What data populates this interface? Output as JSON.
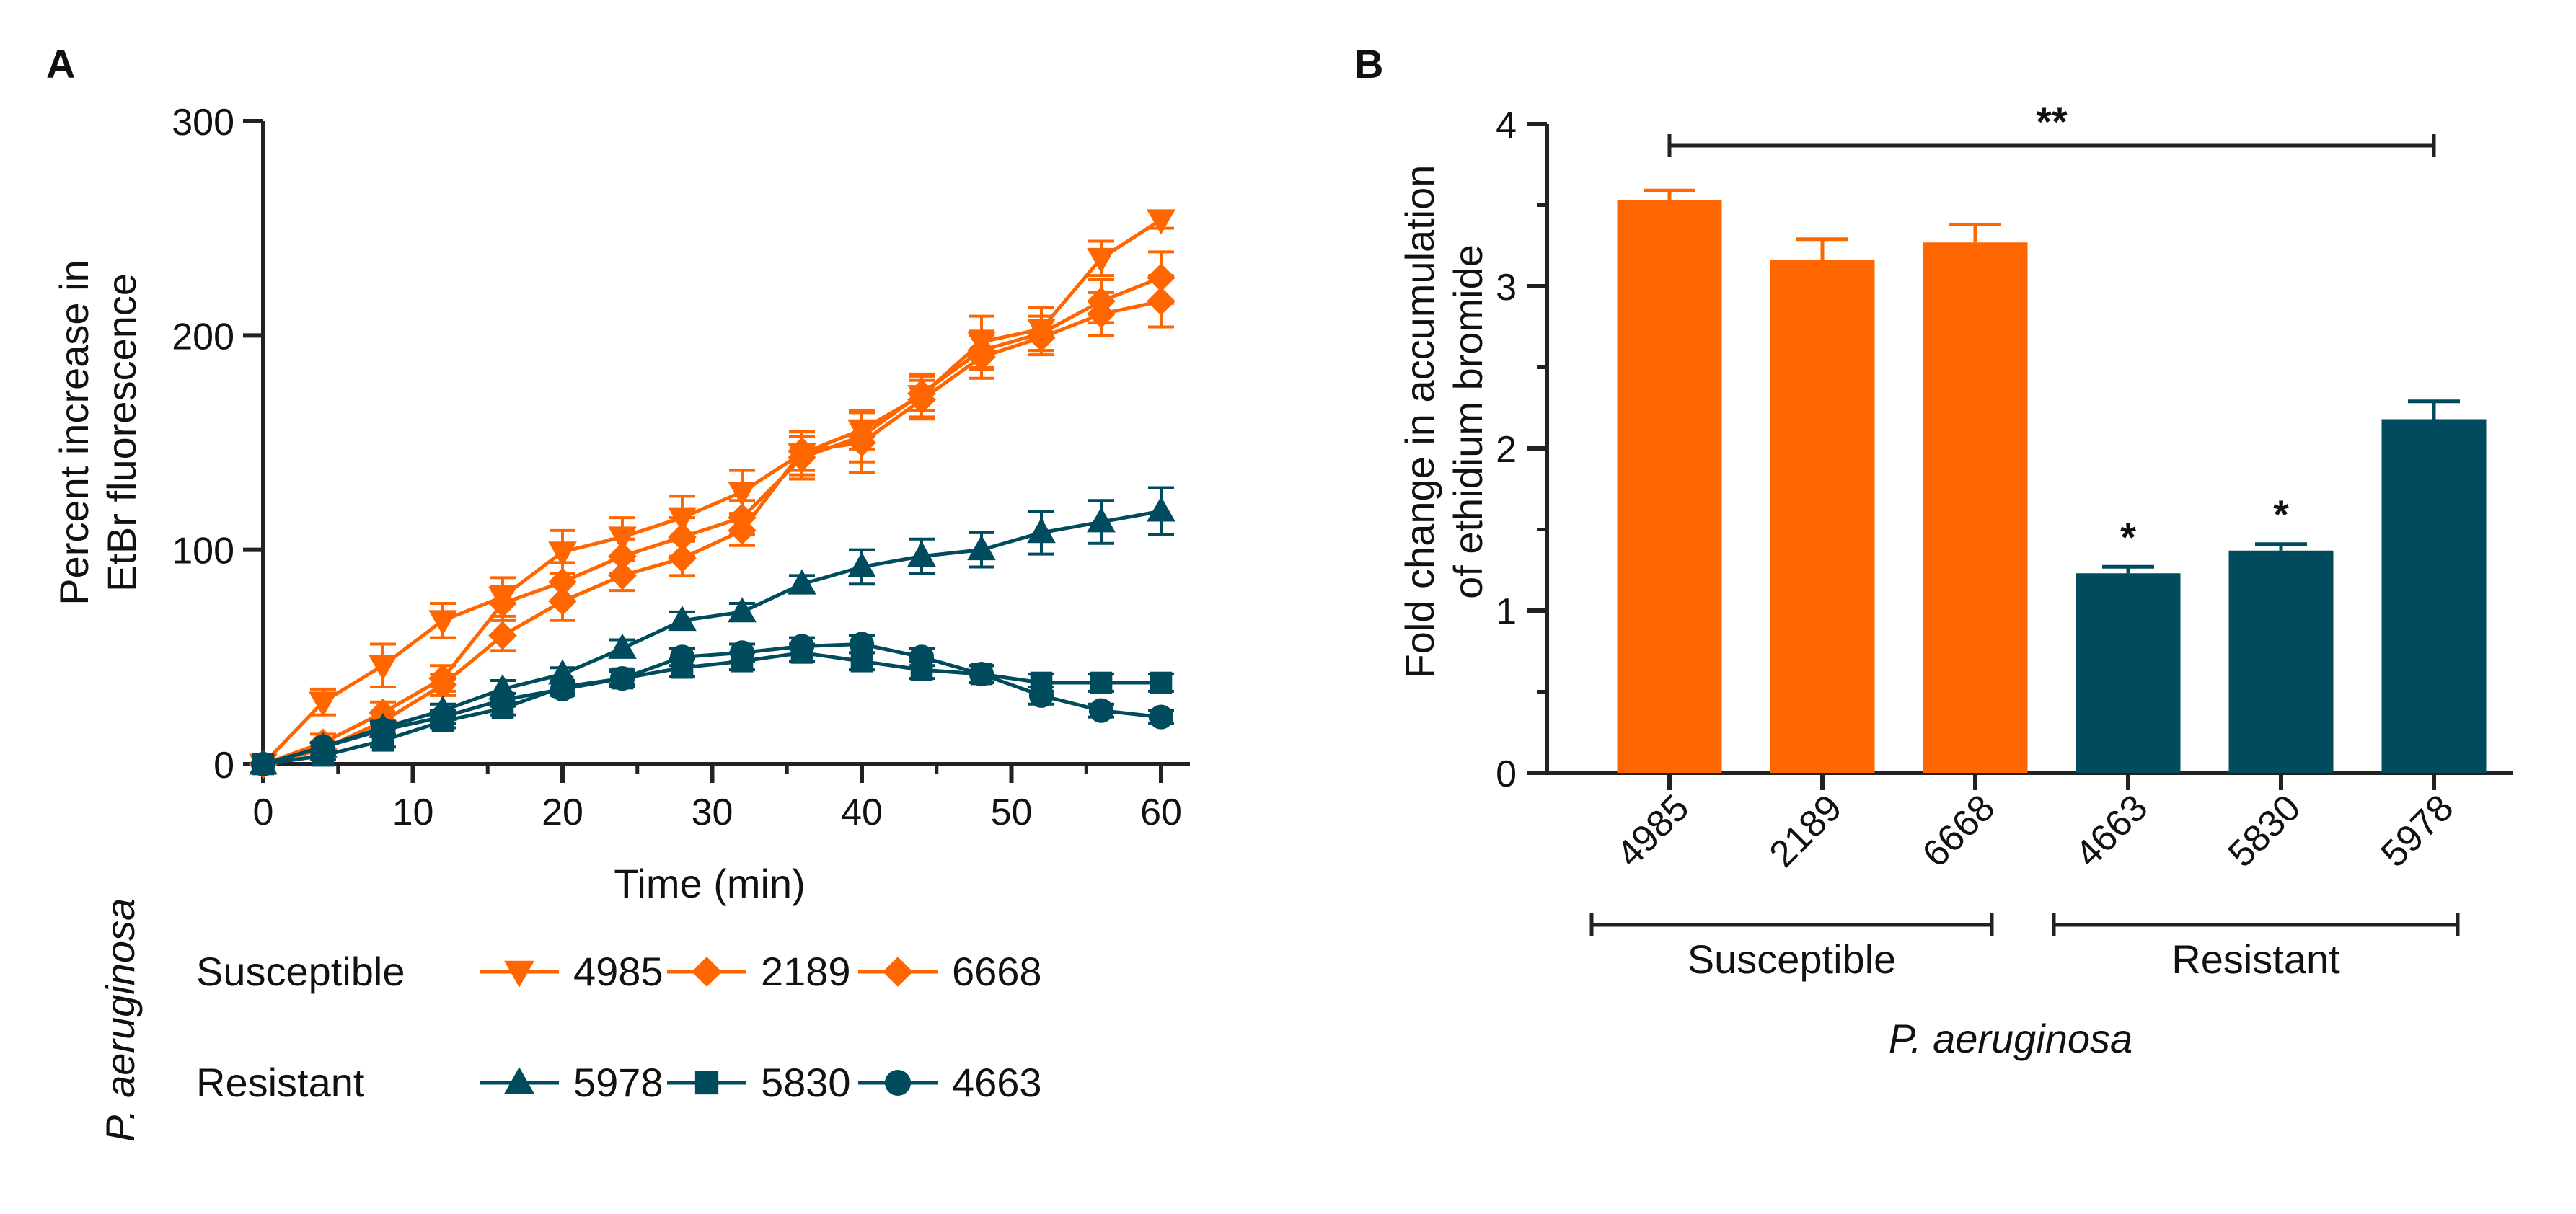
{
  "colors": {
    "susceptible": "#ff6600",
    "resistant": "#004c5e",
    "axis": "#222222"
  },
  "chart_data": [
    {
      "panel": "A",
      "type": "line",
      "xlabel": "Time (min)",
      "ylabel_lines": [
        "Percent increase in",
        "EtBr fluorescence"
      ],
      "xlim": [
        0,
        60
      ],
      "ylim": [
        0,
        300
      ],
      "xticks": [
        0,
        10,
        20,
        30,
        40,
        50,
        60
      ],
      "yticks": [
        0,
        100,
        200,
        300
      ],
      "x": [
        0,
        4,
        8,
        12,
        16,
        20,
        24,
        28,
        32,
        36,
        40,
        44,
        48,
        52,
        56,
        60
      ],
      "series": [
        {
          "name": "4985",
          "group": "Susceptible",
          "marker": "triangle-down",
          "values": [
            0,
            29,
            46,
            67,
            78,
            99,
            106,
            115,
            127,
            145,
            156,
            172,
            197,
            203,
            236,
            254
          ],
          "errors": [
            0,
            6,
            10,
            8,
            9,
            10,
            9,
            10,
            10,
            10,
            9,
            10,
            12,
            10,
            8,
            4
          ]
        },
        {
          "name": "2189",
          "group": "Susceptible",
          "marker": "diamond",
          "values": [
            0,
            10,
            24,
            40,
            75,
            85,
            97,
            106,
            115,
            143,
            153,
            173,
            193,
            201,
            216,
            227
          ],
          "errors": [
            0,
            4,
            5,
            6,
            8,
            9,
            8,
            9,
            8,
            10,
            12,
            8,
            9,
            8,
            10,
            12
          ]
        },
        {
          "name": "6668",
          "group": "Susceptible",
          "marker": "diamond",
          "values": [
            0,
            7,
            20,
            37,
            60,
            76,
            88,
            96,
            109,
            146,
            150,
            170,
            190,
            199,
            210,
            216
          ],
          "errors": [
            0,
            3,
            4,
            5,
            7,
            9,
            7,
            8,
            7,
            9,
            14,
            9,
            10,
            8,
            10,
            12
          ]
        },
        {
          "name": "5978",
          "group": "Resistant",
          "marker": "triangle-up",
          "values": [
            0,
            8,
            17,
            25,
            35,
            42,
            54,
            67,
            71,
            84,
            92,
            97,
            100,
            108,
            113,
            118
          ],
          "errors": [
            0,
            2,
            3,
            3,
            4,
            3,
            4,
            4,
            4,
            4,
            8,
            8,
            8,
            10,
            10,
            11
          ]
        },
        {
          "name": "5830",
          "group": "Resistant",
          "marker": "square",
          "values": [
            0,
            4,
            11,
            20,
            26,
            36,
            40,
            45,
            48,
            52,
            48,
            44,
            42,
            38,
            38,
            38
          ],
          "errors": [
            0,
            2,
            3,
            3,
            3,
            3,
            3,
            4,
            4,
            4,
            4,
            4,
            4,
            4,
            4,
            4
          ]
        },
        {
          "name": "4663",
          "group": "Resistant",
          "marker": "circle",
          "values": [
            0,
            8,
            16,
            22,
            30,
            35,
            40,
            50,
            52,
            55,
            56,
            50,
            42,
            32,
            25,
            22
          ],
          "errors": [
            0,
            2,
            3,
            3,
            3,
            3,
            4,
            4,
            4,
            4,
            4,
            4,
            4,
            4,
            3,
            3
          ]
        }
      ],
      "legend": {
        "organism": "P. aeruginosa",
        "rows": [
          {
            "label": "Susceptible",
            "entries": [
              "4985",
              "2189",
              "6668"
            ]
          },
          {
            "label": "Resistant",
            "entries": [
              "5978",
              "5830",
              "4663"
            ]
          }
        ]
      }
    },
    {
      "panel": "B",
      "type": "bar",
      "ylabel_lines": [
        "Fold change in accumulation",
        "of ethidium bromide"
      ],
      "xlabel": "P. aeruginosa",
      "ylim": [
        0,
        4
      ],
      "yticks": [
        0,
        1,
        2,
        3,
        4
      ],
      "categories": [
        "4985",
        "2189",
        "6668",
        "4663",
        "5830",
        "5978"
      ],
      "groups": [
        "Susceptible",
        "Susceptible",
        "Susceptible",
        "Resistant",
        "Resistant",
        "Resistant"
      ],
      "values": [
        3.53,
        3.16,
        3.27,
        1.23,
        1.37,
        2.18
      ],
      "errors": [
        0.06,
        0.13,
        0.11,
        0.04,
        0.04,
        0.11
      ],
      "annotations": [
        "",
        "",
        "",
        "*",
        "*",
        ""
      ],
      "bracket": {
        "from": "4985",
        "to": "5978",
        "label": "**"
      },
      "group_labels": [
        "Susceptible",
        "Resistant"
      ]
    }
  ]
}
